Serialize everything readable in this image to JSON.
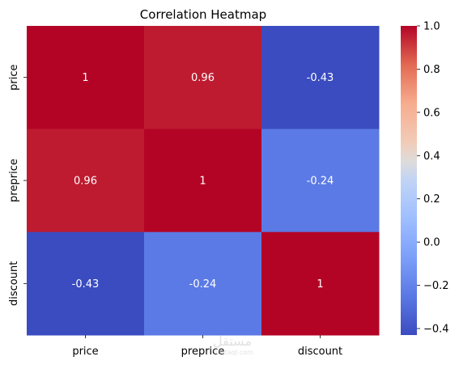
{
  "chart_data": {
    "type": "heatmap",
    "title": "Correlation Heatmap",
    "xlabel": "",
    "ylabel": "",
    "x_categories": [
      "price",
      "preprice",
      "discount"
    ],
    "y_categories": [
      "price",
      "preprice",
      "discount"
    ],
    "values": [
      [
        1,
        0.96,
        -0.43
      ],
      [
        0.96,
        1,
        -0.24
      ],
      [
        -0.43,
        -0.24,
        1
      ]
    ],
    "cell_labels": [
      [
        "1",
        "0.96",
        "-0.43"
      ],
      [
        "0.96",
        "1",
        "-0.24"
      ],
      [
        "-0.43",
        "-0.24",
        "1"
      ]
    ],
    "colormap": "coolwarm",
    "colorbar": {
      "range": [
        -0.43,
        1.0
      ],
      "ticks": [
        -0.4,
        -0.2,
        0.0,
        0.2,
        0.4,
        0.6,
        0.8,
        1.0
      ],
      "tick_labels": [
        "−0.4",
        "−0.2",
        "0.0",
        "0.2",
        "0.4",
        "0.6",
        "0.8",
        "1.0"
      ]
    },
    "grid": false
  }
}
